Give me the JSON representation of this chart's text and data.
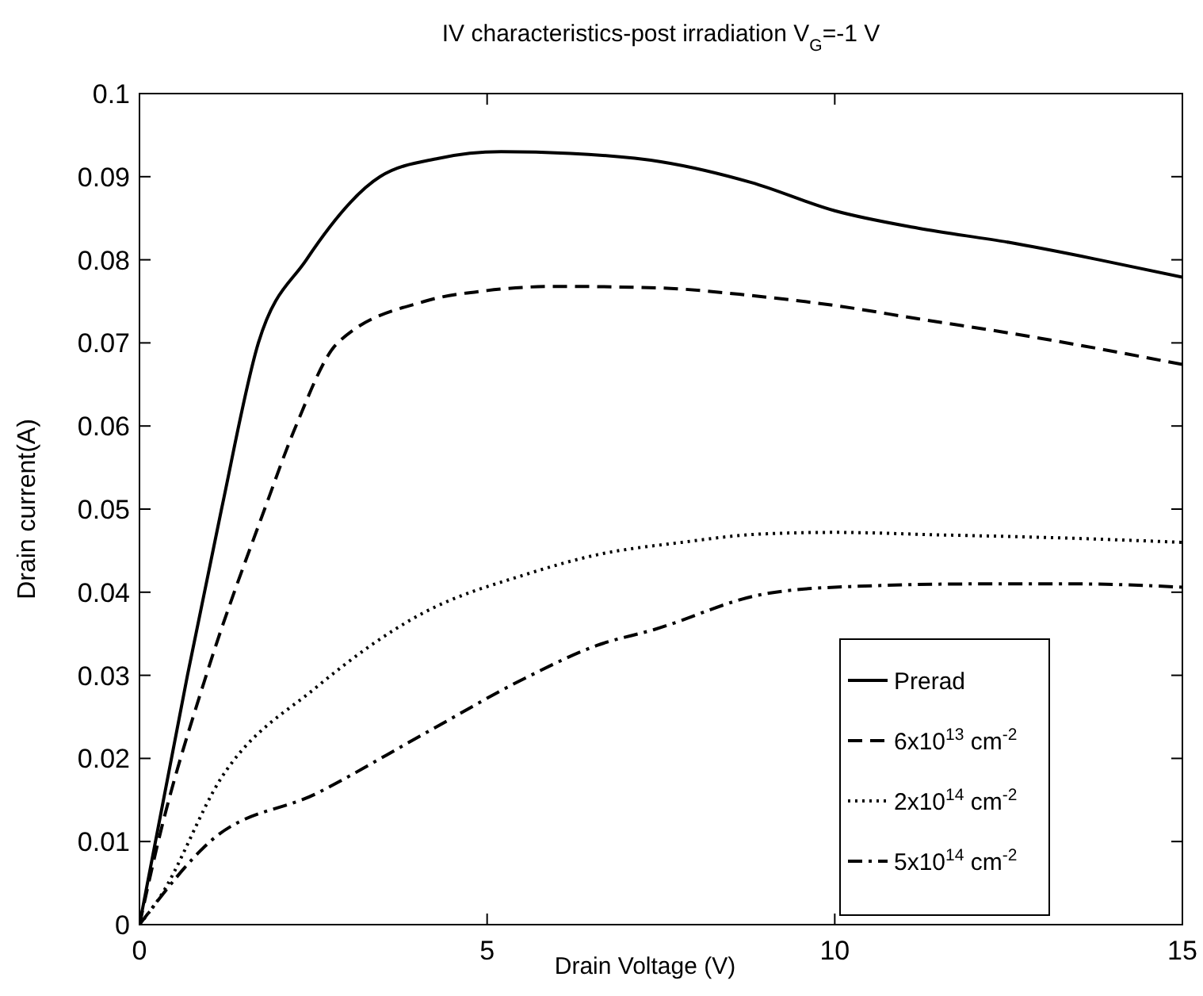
{
  "chart_data": {
    "type": "line",
    "title": "IV characteristics-post irradiation V$_{G}$=-1 V",
    "xlabel": "Drain Voltage (V)",
    "ylabel": "Drain current(A)",
    "xlim": [
      0,
      15
    ],
    "xticks": [
      0,
      5,
      10,
      15
    ],
    "ylim": [
      0,
      0.1
    ],
    "yticks": [
      0,
      0.01,
      0.02,
      0.03,
      0.04,
      0.05,
      0.06,
      0.07,
      0.08,
      0.09,
      0.1
    ],
    "grid": false,
    "legend": "bottom right",
    "series": [
      {
        "name": "Prerad",
        "color": "#000000",
        "line_style": "solid",
        "x": [
          0,
          0.69,
          1.18,
          1.71,
          2.4,
          3.46,
          4.3,
          5.2,
          6.2,
          7.5,
          8.8,
          10,
          11.2,
          12.5,
          13.8,
          15
        ],
        "values": [
          0,
          0.03,
          0.05,
          0.07,
          0.08,
          0.09,
          0.0922,
          0.093,
          0.0928,
          0.0918,
          0.0893,
          0.0859,
          0.0838,
          0.0821,
          0.08,
          0.0779
        ]
      },
      {
        "name": "6x10$^{13}$ cm$^{-2}$",
        "color": "#000000",
        "line_style": "dashed",
        "x": [
          0,
          0.27,
          0.96,
          1.8,
          2.25,
          2.85,
          4.1,
          5,
          6,
          7.5,
          8.8,
          10,
          11.2,
          12.5,
          13.8,
          15
        ],
        "values": [
          0,
          0.01,
          0.03,
          0.05,
          0.06,
          0.07,
          0.075,
          0.0763,
          0.0768,
          0.0766,
          0.0757,
          0.0745,
          0.0729,
          0.0712,
          0.0693,
          0.0674
        ]
      },
      {
        "name": "2x10$^{14}$ cm$^{-2}$",
        "color": "#000000",
        "line_style": "dotted",
        "x": [
          0,
          0.27,
          1.18,
          2.55,
          4.08,
          5.58,
          6.58,
          7.8,
          8.93,
          10,
          11.5,
          13,
          15
        ],
        "values": [
          0,
          0.003,
          0.0177,
          0.0286,
          0.0375,
          0.0422,
          0.0445,
          0.046,
          0.047,
          0.0472,
          0.0469,
          0.0466,
          0.046
        ]
      },
      {
        "name": "5x10$^{14}$ cm$^{-2}$",
        "color": "#000000",
        "line_style": "dashdot",
        "x": [
          0,
          1.03,
          2.55,
          4.08,
          5.58,
          6.58,
          7.4,
          8.93,
          10,
          12.1,
          13.5,
          15
        ],
        "values": [
          0,
          0.0101,
          0.0158,
          0.0229,
          0.0298,
          0.0336,
          0.0355,
          0.0397,
          0.0406,
          0.041,
          0.041,
          0.0406
        ]
      }
    ]
  }
}
